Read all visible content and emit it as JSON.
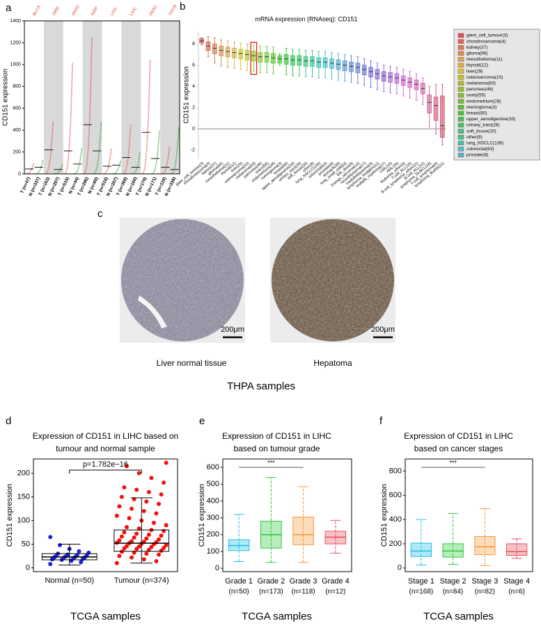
{
  "figure": {
    "panel_labels": [
      "a",
      "b",
      "c",
      "d",
      "e",
      "f"
    ],
    "tissue": {
      "captions": [
        "Liver normal tissue",
        "Hepatoma"
      ],
      "scale_bar": "200μm",
      "footer": "THPA samples"
    }
  },
  "chart_data": [
    {
      "type": "strip",
      "categories": [
        "BLCA",
        "GBM",
        "HNSC",
        "KIRP",
        "LGG",
        "LIHC",
        "PAAD",
        "THYM"
      ],
      "x_labels": [
        "T (n=47)",
        "N (n=337)",
        "T (n=163)",
        "N (n=207)",
        "T (n=519)",
        "N (n=44)",
        "T (n=286)",
        "N (n=60)",
        "T (n=518)",
        "N (n=207)",
        "T (n=369)",
        "N (n=160)",
        "T (n=179)",
        "N (n=171)",
        "T (n=118)",
        "N (n=339)"
      ],
      "series": [
        {
          "color": "#e8413c",
          "medians": [
            45,
            220,
            210,
            450,
            70,
            150,
            380,
            60
          ],
          "max": [
            100,
            480,
            1020,
            1250,
            230,
            450,
            1050,
            250
          ]
        },
        {
          "color": "#1a9a2a",
          "medians": [
            60,
            40,
            90,
            210,
            80,
            60,
            140,
            40
          ],
          "max": [
            130,
            90,
            240,
            480,
            120,
            200,
            390,
            430
          ]
        }
      ],
      "ylabel": "CD151 expression",
      "ylim": [
        0,
        1400
      ],
      "yticks": [
        0,
        200,
        400,
        600,
        800,
        1000,
        1200,
        1400
      ]
    },
    {
      "type": "box",
      "title": "mRNA expression (RNAseq): CD151",
      "categories": [
        "giant_cell_tumour(3)",
        "chondrosarcoma(4)",
        "kidney(37)",
        "glioma(66)",
        "mesothelioma(11)",
        "thyroid(12)",
        "liver(29)",
        "osteosarcoma(10)",
        "melanoma(63)",
        "pancreas(46)",
        "ovary(55)",
        "endometrium(28)",
        "meningioma(3)",
        "breast(60)",
        "upper_aerodigestive(33)",
        "urinary_tract(28)",
        "soft_tissue(20)",
        "other(8)",
        "lung_NSCLC(136)",
        "colorectal(63)",
        "prostate(8)",
        "stomach(38)",
        "lung_small_cell(53)",
        "bile_duct(8)",
        "Ewings_sarcoma(12)",
        "neuroblastoma(17)",
        "medulloblastoma(4)",
        "lymphoma_Hodgkin(12)",
        "multiple_myeloma(27)",
        "CML(15)",
        "AML(36)",
        "leukemia_other(6)",
        "T-cell_ALL(16)",
        "B-cell_lymphoma_other(11)",
        "B-cell_ALL(12)",
        "lymphoma_DLBCL(18)",
        "T-cell_lymphoma(6)",
        "lymphoma_Burkitt(11)"
      ],
      "median": [
        8.3,
        7.8,
        7.6,
        7.4,
        7.3,
        7.2,
        7.1,
        7.0,
        6.9,
        6.8,
        6.8,
        6.7,
        6.6,
        6.6,
        6.5,
        6.5,
        6.4,
        6.4,
        6.3,
        6.3,
        6.2,
        6.1,
        6.0,
        5.9,
        5.8,
        5.6,
        5.4,
        5.2,
        5.0,
        4.9,
        4.8,
        4.6,
        4.4,
        4.2,
        3.8,
        2.5,
        2.2,
        0.3
      ],
      "q1": [
        8.1,
        7.4,
        7.1,
        6.9,
        6.8,
        6.7,
        6.6,
        6.5,
        6.4,
        6.3,
        6.3,
        6.2,
        6.2,
        6.1,
        6.0,
        6.0,
        5.9,
        5.9,
        5.8,
        5.8,
        5.7,
        5.6,
        5.5,
        5.4,
        5.3,
        5.1,
        4.9,
        4.7,
        4.5,
        4.4,
        4.3,
        4.1,
        3.9,
        3.7,
        3.3,
        1.5,
        0.8,
        -0.8
      ],
      "q3": [
        8.5,
        8.2,
        8.0,
        7.8,
        7.7,
        7.6,
        7.5,
        7.4,
        7.3,
        7.2,
        7.2,
        7.1,
        6.9,
        7.0,
        6.9,
        6.9,
        6.8,
        6.8,
        6.7,
        6.7,
        6.6,
        6.5,
        6.4,
        6.3,
        6.2,
        6.0,
        5.8,
        5.6,
        5.4,
        5.3,
        5.2,
        5.0,
        4.8,
        4.6,
        4.3,
        3.2,
        3.0,
        3.1
      ],
      "lo": [
        7.9,
        6.8,
        6.2,
        5.9,
        5.8,
        5.7,
        5.6,
        5.5,
        5.4,
        5.3,
        5.3,
        5.2,
        6.0,
        5.1,
        5.0,
        5.0,
        4.9,
        4.9,
        4.8,
        4.8,
        4.7,
        4.6,
        4.5,
        4.4,
        4.3,
        4.1,
        3.9,
        3.7,
        3.5,
        3.4,
        3.3,
        3.1,
        2.9,
        2.7,
        2.3,
        0.2,
        -0.5,
        -1.5
      ],
      "hi": [
        8.6,
        8.7,
        8.6,
        8.4,
        8.3,
        8.2,
        8.1,
        8.0,
        7.9,
        7.8,
        7.8,
        7.7,
        7.1,
        7.6,
        7.5,
        7.5,
        7.4,
        7.4,
        7.3,
        7.3,
        7.2,
        7.1,
        7.0,
        6.9,
        6.8,
        6.6,
        6.4,
        6.2,
        6.0,
        5.9,
        5.8,
        5.6,
        5.4,
        5.2,
        4.8,
        4.0,
        4.2,
        4.2
      ],
      "colors": [
        "hsl(0,60%,58%)",
        "hsl(10,60%,58%)",
        "hsl(19,60%,58%)",
        "hsl(28,60%,58%)",
        "hsl(38,60%,58%)",
        "hsl(47,60%,55%)",
        "hsl(57,60%,50%)",
        "hsl(66,60%,48%)",
        "hsl(76,60%,48%)",
        "hsl(85,60%,48%)",
        "hsl(95,55%,50%)",
        "hsl(104,55%,50%)",
        "hsl(114,55%,50%)",
        "hsl(123,55%,50%)",
        "hsl(133,55%,50%)",
        "hsl(142,55%,50%)",
        "hsl(152,55%,50%)",
        "hsl(161,55%,50%)",
        "hsl(170,55%,50%)",
        "hsl(180,55%,50%)",
        "hsl(189,55%,55%)",
        "hsl(199,55%,58%)",
        "hsl(208,55%,58%)",
        "hsl(218,55%,60%)",
        "hsl(227,55%,62%)",
        "hsl(237,55%,64%)",
        "hsl(246,55%,64%)",
        "hsl(256,55%,64%)",
        "hsl(265,55%,62%)",
        "hsl(275,55%,62%)",
        "hsl(284,55%,62%)",
        "hsl(294,55%,62%)",
        "hsl(303,55%,62%)",
        "hsl(313,55%,62%)",
        "hsl(322,55%,62%)",
        "hsl(332,55%,62%)",
        "hsl(341,55%,60%)",
        "hsl(350,55%,58%)"
      ],
      "legend_count": 21,
      "ylabel": "CD151 expression",
      "ylim": [
        -2.8,
        9.2
      ],
      "yticks": [
        -2,
        0,
        2,
        4,
        6,
        8
      ]
    },
    {
      "type": "swarm",
      "title": [
        "Expression of CD151 in LIHC based on",
        "tumour and normal sample"
      ],
      "categories": [
        "Normal (n=50)",
        "Tumour (n=374)"
      ],
      "median": [
        23,
        52
      ],
      "q1": [
        17,
        35
      ],
      "q3": [
        30,
        80
      ],
      "lo": [
        6,
        10
      ],
      "hi": [
        50,
        148
      ],
      "points": [
        [
          8,
          12,
          15,
          17,
          18,
          19,
          20,
          21,
          22,
          22,
          23,
          24,
          25,
          26,
          27,
          28,
          30,
          32,
          35,
          40,
          48,
          65
        ],
        [
          10,
          14,
          18,
          22,
          25,
          28,
          30,
          32,
          34,
          36,
          38,
          40,
          41,
          42,
          44,
          45,
          46,
          48,
          50,
          51,
          52,
          53,
          54,
          55,
          56,
          58,
          60,
          62,
          64,
          66,
          68,
          70,
          72,
          75,
          78,
          80,
          83,
          86,
          90,
          95,
          100,
          105,
          110,
          115,
          120,
          125,
          130,
          135,
          140,
          145,
          150,
          155,
          160,
          165,
          170,
          180,
          190,
          200,
          215,
          222
        ]
      ],
      "colors": [
        "#1f1fe0",
        "#f01010"
      ],
      "annotation": "p=1.782e−16",
      "ylabel": "CD151 expression",
      "xlabel": "TCGA samples",
      "ylim": [
        -8,
        230
      ],
      "yticks": [
        0,
        50,
        100,
        150,
        200
      ]
    },
    {
      "type": "box",
      "title": [
        "Expression of CD151 in LIHC",
        "based on tumour grade"
      ],
      "categories": [
        "Grade 1",
        "Grade 2",
        "Grade 3",
        "Grade 4"
      ],
      "counts": [
        "(n=50)",
        "(n=173)",
        "(n=118)",
        "(n=12)"
      ],
      "median": [
        135,
        200,
        200,
        185
      ],
      "q1": [
        105,
        120,
        140,
        145
      ],
      "q3": [
        170,
        280,
        305,
        220
      ],
      "lo": [
        40,
        35,
        35,
        90
      ],
      "hi": [
        320,
        540,
        485,
        285
      ],
      "colors": [
        "#20c0e8",
        "#30c840",
        "#f59a3c",
        "#e8505e"
      ],
      "annotation": "***",
      "ylabel": "CD151 expression",
      "xlabel": "TCGA samples",
      "ylim": [
        -20,
        650
      ],
      "yticks": [
        0,
        100,
        200,
        300,
        400,
        500,
        600
      ]
    },
    {
      "type": "box",
      "title": [
        "Expression of CD151 in LIHC",
        "based on cancer stages"
      ],
      "categories": [
        "Stage 1",
        "Stage 2",
        "Stage 3",
        "Stage 4"
      ],
      "counts": [
        "(n=168)",
        "(n=84)",
        "(n=82)",
        "(n=6)"
      ],
      "median": [
        140,
        140,
        175,
        135
      ],
      "q1": [
        95,
        90,
        110,
        105
      ],
      "q3": [
        205,
        200,
        260,
        200
      ],
      "lo": [
        25,
        30,
        20,
        80
      ],
      "hi": [
        400,
        450,
        490,
        240
      ],
      "colors": [
        "#20c0e8",
        "#30c840",
        "#f59a3c",
        "#e8505e"
      ],
      "annotation": "***",
      "ylabel": "CD151 expression",
      "xlabel": "TCGA samples",
      "ylim": [
        -30,
        900
      ],
      "yticks": [
        0,
        200,
        400,
        600,
        800
      ]
    }
  ]
}
